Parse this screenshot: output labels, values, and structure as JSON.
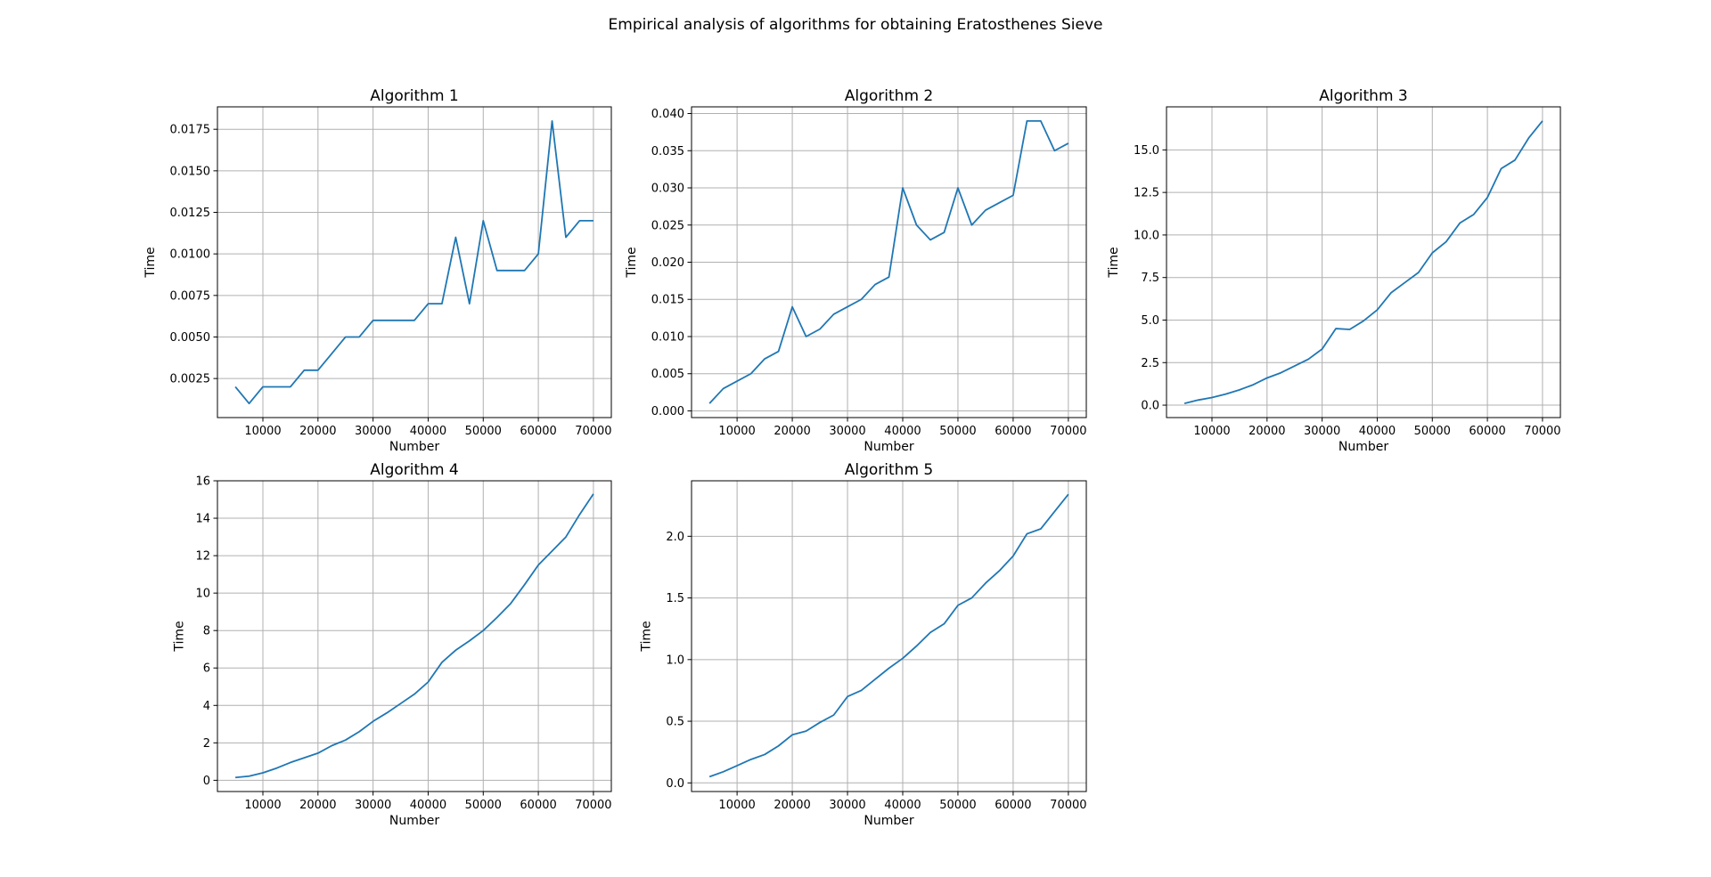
{
  "figure": {
    "title": "Empirical analysis of algorithms for obtaining Eratosthenes Sieve"
  },
  "style": {
    "line_color": "#1f77b4",
    "grid_color": "#b0b0b0",
    "axis_color": "#000000",
    "background": "#ffffff"
  },
  "chart_data": [
    {
      "type": "line",
      "title": "Algorithm 1",
      "xlabel": "Number",
      "ylabel": "Time",
      "grid": true,
      "xlim": [
        1750,
        73250
      ],
      "ylim": [
        0.00015,
        0.01885
      ],
      "xticks": [
        10000,
        20000,
        30000,
        40000,
        50000,
        60000,
        70000
      ],
      "xtick_labels": [
        "10000",
        "20000",
        "30000",
        "40000",
        "50000",
        "60000",
        "70000"
      ],
      "yticks": [
        0.0025,
        0.005,
        0.0075,
        0.01,
        0.0125,
        0.015,
        0.0175
      ],
      "ytick_labels": [
        "0.0025",
        "0.0050",
        "0.0075",
        "0.0100",
        "0.0125",
        "0.0150",
        "0.0175"
      ],
      "x": [
        5000,
        7500,
        10000,
        12500,
        15000,
        17500,
        20000,
        22500,
        25000,
        27500,
        30000,
        32500,
        35000,
        37500,
        40000,
        42500,
        45000,
        47500,
        50000,
        52500,
        55000,
        57500,
        60000,
        62500,
        65000,
        67500,
        70000
      ],
      "y": [
        0.002,
        0.001,
        0.002,
        0.002,
        0.002,
        0.003,
        0.003,
        0.004,
        0.005,
        0.005,
        0.006,
        0.006,
        0.006,
        0.006,
        0.007,
        0.007,
        0.011,
        0.007,
        0.012,
        0.009,
        0.009,
        0.009,
        0.01,
        0.018,
        0.011,
        0.012,
        0.012
      ]
    },
    {
      "type": "line",
      "title": "Algorithm 2",
      "xlabel": "Number",
      "ylabel": "Time",
      "grid": true,
      "xlim": [
        1750,
        73250
      ],
      "ylim": [
        -0.0009,
        0.0409
      ],
      "xticks": [
        10000,
        20000,
        30000,
        40000,
        50000,
        60000,
        70000
      ],
      "xtick_labels": [
        "10000",
        "20000",
        "30000",
        "40000",
        "50000",
        "60000",
        "70000"
      ],
      "yticks": [
        0,
        0.005,
        0.01,
        0.015,
        0.02,
        0.025,
        0.03,
        0.035,
        0.04
      ],
      "ytick_labels": [
        "0.000",
        "0.005",
        "0.010",
        "0.015",
        "0.020",
        "0.025",
        "0.030",
        "0.035",
        "0.040"
      ],
      "x": [
        5000,
        7500,
        10000,
        12500,
        15000,
        17500,
        20000,
        22500,
        25000,
        27500,
        30000,
        32500,
        35000,
        37500,
        40000,
        42500,
        45000,
        47500,
        50000,
        52500,
        55000,
        57500,
        60000,
        62500,
        65000,
        67500,
        70000
      ],
      "y": [
        0.001,
        0.003,
        0.004,
        0.005,
        0.007,
        0.008,
        0.014,
        0.01,
        0.011,
        0.013,
        0.014,
        0.015,
        0.017,
        0.018,
        0.03,
        0.025,
        0.023,
        0.024,
        0.03,
        0.025,
        0.027,
        0.028,
        0.029,
        0.039,
        0.039,
        0.035,
        0.036
      ]
    },
    {
      "type": "line",
      "title": "Algorithm 3",
      "xlabel": "Number",
      "ylabel": "Time",
      "grid": true,
      "xlim": [
        1750,
        73250
      ],
      "ylim": [
        -0.73,
        17.53
      ],
      "xticks": [
        10000,
        20000,
        30000,
        40000,
        50000,
        60000,
        70000
      ],
      "xtick_labels": [
        "10000",
        "20000",
        "30000",
        "40000",
        "50000",
        "60000",
        "70000"
      ],
      "yticks": [
        0,
        2.5,
        5,
        7.5,
        10,
        12.5,
        15
      ],
      "ytick_labels": [
        "0.0",
        "2.5",
        "5.0",
        "7.5",
        "10.0",
        "12.5",
        "15.0"
      ],
      "x": [
        5000,
        7500,
        10000,
        12500,
        15000,
        17500,
        20000,
        22500,
        25000,
        27500,
        30000,
        32500,
        35000,
        37500,
        40000,
        42500,
        45000,
        47500,
        50000,
        52500,
        55000,
        57500,
        60000,
        62500,
        65000,
        67500,
        70000
      ],
      "y": [
        0.1,
        0.3,
        0.45,
        0.65,
        0.9,
        1.2,
        1.6,
        1.9,
        2.3,
        2.7,
        3.3,
        4.5,
        4.45,
        4.95,
        5.6,
        6.6,
        7.2,
        7.8,
        8.95,
        9.6,
        10.7,
        11.2,
        12.2,
        13.9,
        14.4,
        15.7,
        16.7
      ]
    },
    {
      "type": "line",
      "title": "Algorithm 4",
      "xlabel": "Number",
      "ylabel": "Time",
      "grid": true,
      "xlim": [
        1750,
        73250
      ],
      "ylim": [
        -0.6,
        16.0
      ],
      "xticks": [
        10000,
        20000,
        30000,
        40000,
        50000,
        60000,
        70000
      ],
      "xtick_labels": [
        "10000",
        "20000",
        "30000",
        "40000",
        "50000",
        "60000",
        "70000"
      ],
      "yticks": [
        0,
        2,
        4,
        6,
        8,
        10,
        12,
        14,
        16
      ],
      "ytick_labels": [
        "0",
        "2",
        "4",
        "6",
        "8",
        "10",
        "12",
        "14",
        "16"
      ],
      "x": [
        5000,
        7500,
        10000,
        12500,
        15000,
        17500,
        20000,
        22500,
        25000,
        27500,
        30000,
        32500,
        35000,
        37500,
        40000,
        42500,
        45000,
        47500,
        50000,
        52500,
        55000,
        57500,
        60000,
        62500,
        65000,
        67500,
        70000
      ],
      "y": [
        0.15,
        0.22,
        0.4,
        0.65,
        0.95,
        1.2,
        1.45,
        1.85,
        2.15,
        2.6,
        3.15,
        3.6,
        4.1,
        4.6,
        5.25,
        6.3,
        6.95,
        7.45,
        8.0,
        8.7,
        9.45,
        10.45,
        11.5,
        12.25,
        13.0,
        14.2,
        15.3
      ]
    },
    {
      "type": "line",
      "title": "Algorithm 5",
      "xlabel": "Number",
      "ylabel": "Time",
      "grid": true,
      "xlim": [
        1750,
        73250
      ],
      "ylim": [
        -0.07,
        2.45
      ],
      "xticks": [
        10000,
        20000,
        30000,
        40000,
        50000,
        60000,
        70000
      ],
      "xtick_labels": [
        "10000",
        "20000",
        "30000",
        "40000",
        "50000",
        "60000",
        "70000"
      ],
      "yticks": [
        0,
        0.5,
        1,
        1.5,
        2
      ],
      "ytick_labels": [
        "0.0",
        "0.5",
        "1.0",
        "1.5",
        "2.0"
      ],
      "x": [
        5000,
        7500,
        10000,
        12500,
        15000,
        17500,
        20000,
        22500,
        25000,
        27500,
        30000,
        32500,
        35000,
        37500,
        40000,
        42500,
        45000,
        47500,
        50000,
        52500,
        55000,
        57500,
        60000,
        62500,
        65000,
        67500,
        70000
      ],
      "y": [
        0.05,
        0.09,
        0.14,
        0.19,
        0.23,
        0.3,
        0.39,
        0.42,
        0.49,
        0.55,
        0.7,
        0.75,
        0.84,
        0.93,
        1.01,
        1.11,
        1.22,
        1.29,
        1.44,
        1.5,
        1.62,
        1.72,
        1.84,
        2.02,
        2.06,
        2.2,
        2.34
      ]
    }
  ]
}
